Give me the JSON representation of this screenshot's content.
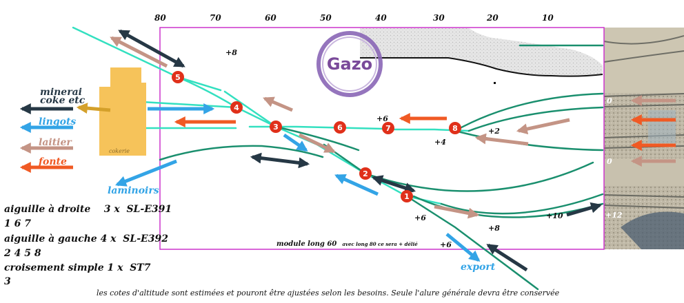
{
  "scale_labels": [
    "80",
    "70",
    "60",
    "50",
    "40",
    "30",
    "20",
    "10"
  ],
  "logo_text": "Gazo",
  "outputs": {
    "minerai_line1": "minerai",
    "minerai_line2": "coke etc",
    "lingots": "lingots",
    "laitier": "laitier",
    "fonte": "fonte",
    "laminoirs": "laminoirs",
    "export": "export"
  },
  "station_label": "cokerie",
  "switches": [
    "5",
    "4",
    "3",
    "6",
    "7",
    "8",
    "2",
    "1"
  ],
  "altitudes": {
    "a_top": "+8",
    "a_mid_6": "+6",
    "a_mid_2": "+2",
    "a_mid_4": "+4",
    "a_low_6": "+6",
    "a_low_8": "+8",
    "a_bottom_6": "+6",
    "a_right_10": "+10",
    "a_photo_0a": "0",
    "a_photo_0b": "0",
    "a_photo_12": "+12"
  },
  "module_note_main": "module long 60",
  "module_note_small": "avec long 80 ce sera + délié",
  "legend": [
    "aiguille à droite    3 x  SL-E391",
    "1 6 7",
    "aiguille à gauche 4 x  SL-E392",
    "2 4 5 8",
    "croisement simple 1 x  ST7",
    "3"
  ],
  "footer": "les cotes d'altitude sont estimées et pouront être ajustées selon les besoins. Seule l'alure générale devra être conservée",
  "colors": {
    "module_border": "#cc33cc",
    "track_light": "#33e0c0",
    "track_dark": "#1a8f6e",
    "switch_red": "#e0301a",
    "arrow_dark": "#263845",
    "arrow_blue": "#33a4e6",
    "arrow_tan": "#c49485",
    "arrow_orange": "#f05a24",
    "station": "#f6c35a",
    "logo_ring": "#8a66b6",
    "logo_text": "#7a4a9a"
  }
}
